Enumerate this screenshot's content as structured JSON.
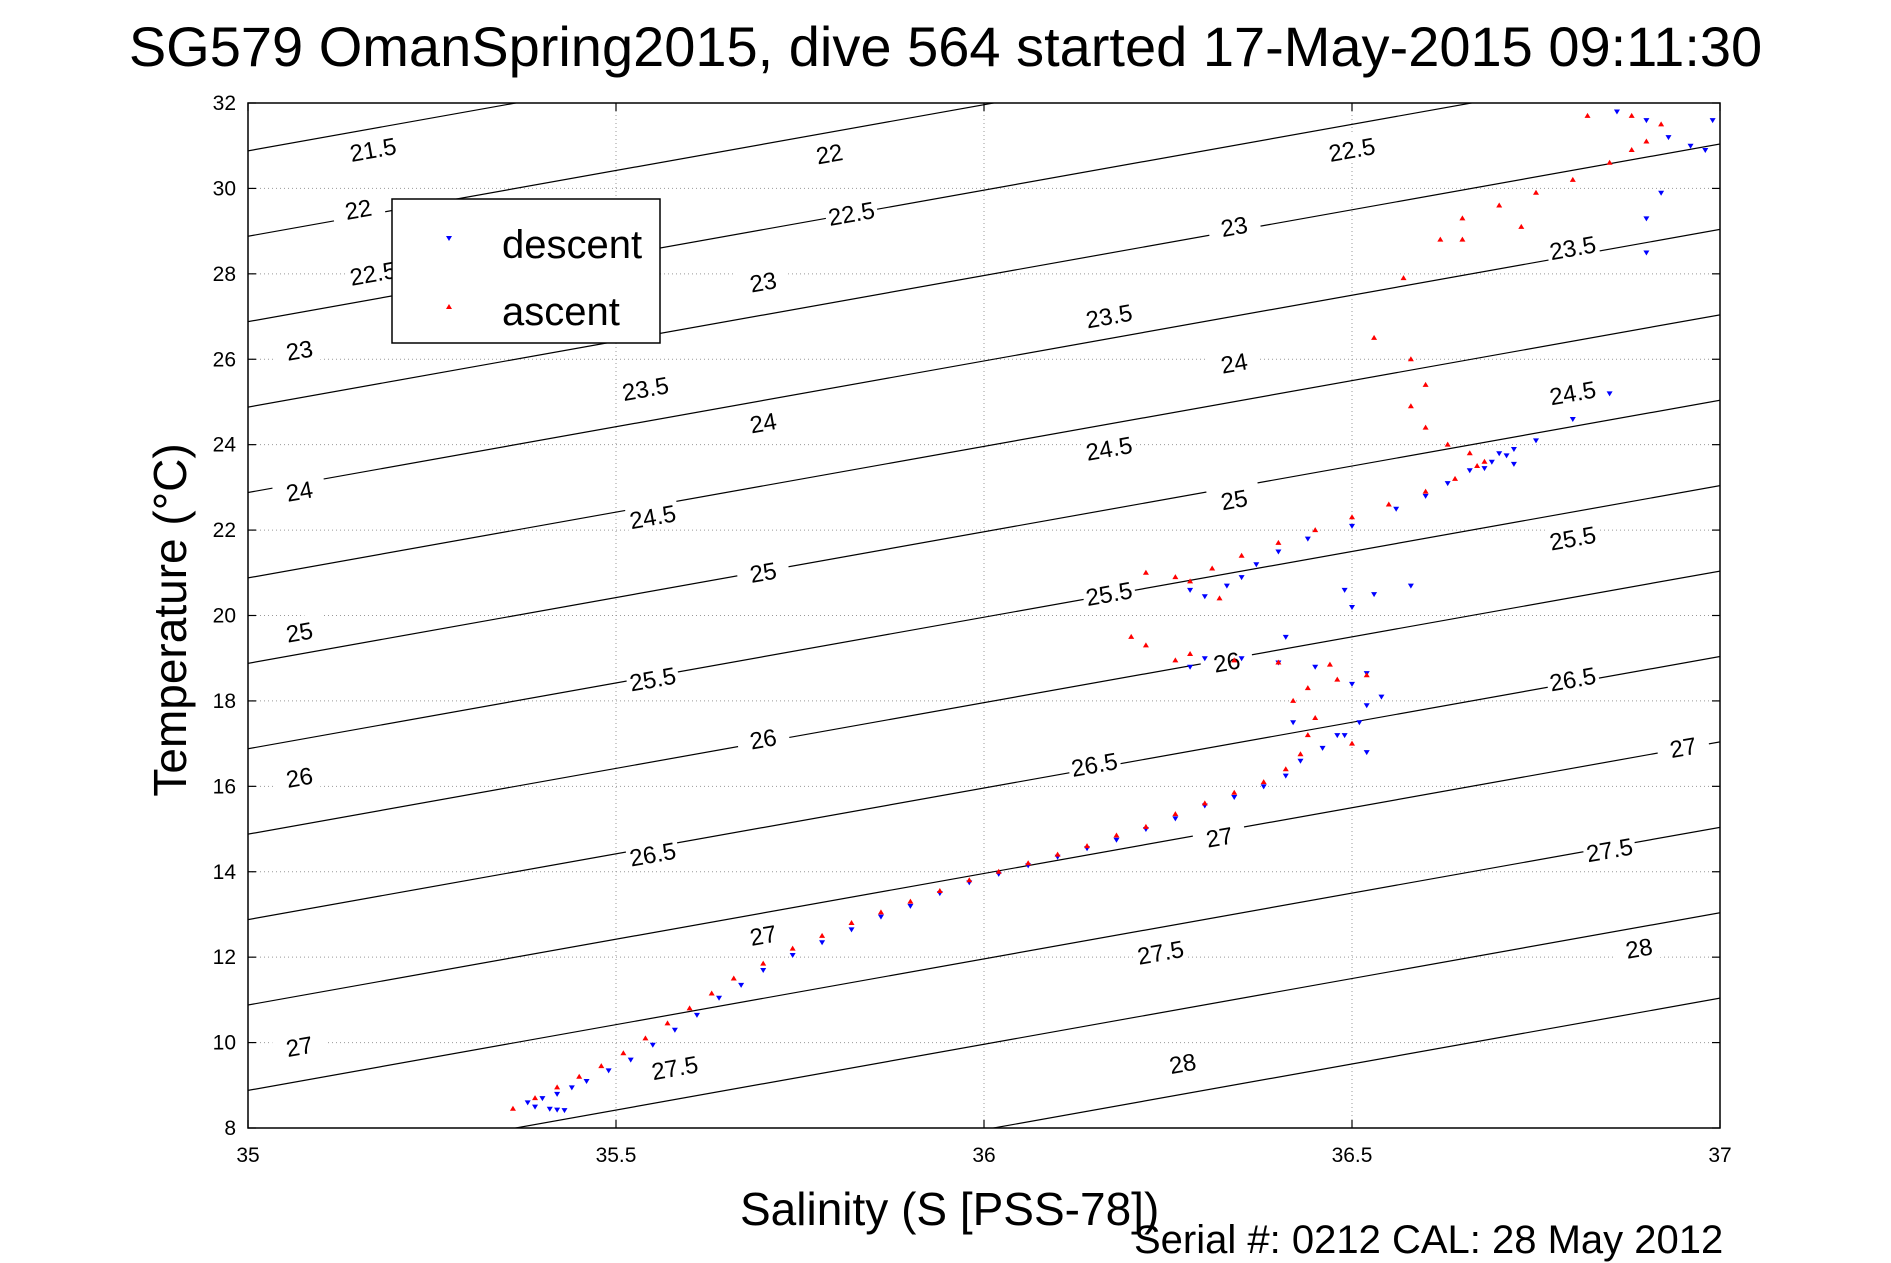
{
  "title": "SG579 OmanSpring2015, dive 564 started 17-May-2015 09:11:30",
  "footnote": "Serial #: 0212  CAL: 28 May 2012",
  "chart_data": {
    "type": "scatter",
    "title": "SG579 OmanSpring2015, dive 564 started 17-May-2015 09:11:30",
    "xlabel": "Salinity (S [PSS-78])",
    "ylabel": "Temperature (°C)",
    "xlim": [
      35,
      37
    ],
    "ylim": [
      8,
      32
    ],
    "xticks": [
      "35",
      "35.5",
      "36",
      "36.5",
      "37"
    ],
    "yticks": [
      "8",
      "10",
      "12",
      "14",
      "16",
      "18",
      "20",
      "22",
      "24",
      "26",
      "28",
      "30",
      "32"
    ],
    "grid": "dotted",
    "legend_position": "top-left",
    "density_contours": {
      "levels": [
        21.5,
        22,
        22.5,
        23,
        23.5,
        24,
        24.5,
        25,
        25.5,
        26,
        26.5,
        27,
        27.5,
        28
      ],
      "color": "#000000",
      "labels": [
        {
          "text": "21.5",
          "s": 35.17,
          "t": 30.9
        },
        {
          "text": "22",
          "s": 35.15,
          "t": 29.5
        },
        {
          "text": "22.5",
          "s": 35.17,
          "t": 28.0
        },
        {
          "text": "23",
          "s": 35.07,
          "t": 26.2
        },
        {
          "text": "24",
          "s": 35.07,
          "t": 22.9
        },
        {
          "text": "25",
          "s": 35.07,
          "t": 19.6
        },
        {
          "text": "26",
          "s": 35.07,
          "t": 16.2
        },
        {
          "text": "27",
          "s": 35.07,
          "t": 9.9
        },
        {
          "text": "22",
          "s": 35.79,
          "t": 30.8
        },
        {
          "text": "22.5",
          "s": 35.82,
          "t": 29.4
        },
        {
          "text": "23",
          "s": 35.7,
          "t": 27.8
        },
        {
          "text": "23.5",
          "s": 35.54,
          "t": 25.3
        },
        {
          "text": "24",
          "s": 35.7,
          "t": 24.5
        },
        {
          "text": "24.5",
          "s": 35.55,
          "t": 22.3
        },
        {
          "text": "25",
          "s": 35.7,
          "t": 21.0
        },
        {
          "text": "25.5",
          "s": 35.55,
          "t": 18.5
        },
        {
          "text": "26",
          "s": 35.7,
          "t": 17.1
        },
        {
          "text": "26.5",
          "s": 35.55,
          "t": 14.4
        },
        {
          "text": "27",
          "s": 35.7,
          "t": 12.5
        },
        {
          "text": "27.5",
          "s": 35.58,
          "t": 9.4
        },
        {
          "text": "22.5",
          "s": 36.5,
          "t": 30.9
        },
        {
          "text": "23",
          "s": 36.34,
          "t": 29.1
        },
        {
          "text": "23.5",
          "s": 36.17,
          "t": 27.0
        },
        {
          "text": "24",
          "s": 36.34,
          "t": 25.9
        },
        {
          "text": "24.5",
          "s": 36.17,
          "t": 23.9
        },
        {
          "text": "25",
          "s": 36.34,
          "t": 22.7
        },
        {
          "text": "25.5",
          "s": 36.17,
          "t": 20.5
        },
        {
          "text": "26",
          "s": 36.33,
          "t": 18.9
        },
        {
          "text": "26.5",
          "s": 36.15,
          "t": 16.5
        },
        {
          "text": "27",
          "s": 36.32,
          "t": 14.8
        },
        {
          "text": "27.5",
          "s": 36.24,
          "t": 12.1
        },
        {
          "text": "28",
          "s": 36.27,
          "t": 9.5
        },
        {
          "text": "23.5",
          "s": 36.8,
          "t": 28.6
        },
        {
          "text": "24.5",
          "s": 36.8,
          "t": 25.2
        },
        {
          "text": "25.5",
          "s": 36.8,
          "t": 21.8
        },
        {
          "text": "26.5",
          "s": 36.8,
          "t": 18.5
        },
        {
          "text": "27",
          "s": 36.95,
          "t": 16.9
        },
        {
          "text": "27.5",
          "s": 36.85,
          "t": 14.5
        },
        {
          "text": "28",
          "s": 36.89,
          "t": 12.2
        }
      ]
    },
    "series": [
      {
        "name": "descent",
        "color": "#0000ff",
        "marker": "down-triangle",
        "points": [
          [
            35.41,
            8.45
          ],
          [
            35.42,
            8.43
          ],
          [
            35.43,
            8.42
          ],
          [
            35.39,
            8.5
          ],
          [
            35.38,
            8.6
          ],
          [
            35.4,
            8.7
          ],
          [
            35.42,
            8.8
          ],
          [
            35.44,
            8.95
          ],
          [
            35.46,
            9.1
          ],
          [
            35.49,
            9.35
          ],
          [
            35.52,
            9.6
          ],
          [
            35.55,
            9.95
          ],
          [
            35.58,
            10.3
          ],
          [
            35.61,
            10.65
          ],
          [
            35.64,
            11.05
          ],
          [
            35.67,
            11.35
          ],
          [
            35.7,
            11.7
          ],
          [
            35.74,
            12.05
          ],
          [
            35.78,
            12.35
          ],
          [
            35.82,
            12.65
          ],
          [
            35.86,
            12.95
          ],
          [
            35.9,
            13.2
          ],
          [
            35.94,
            13.5
          ],
          [
            35.98,
            13.75
          ],
          [
            36.02,
            13.95
          ],
          [
            36.06,
            14.15
          ],
          [
            36.1,
            14.35
          ],
          [
            36.14,
            14.55
          ],
          [
            36.18,
            14.75
          ],
          [
            36.22,
            15.0
          ],
          [
            36.26,
            15.25
          ],
          [
            36.3,
            15.55
          ],
          [
            36.34,
            15.75
          ],
          [
            36.38,
            16.0
          ],
          [
            36.41,
            16.25
          ],
          [
            36.43,
            16.6
          ],
          [
            36.46,
            16.9
          ],
          [
            36.49,
            17.2
          ],
          [
            36.51,
            17.5
          ],
          [
            36.52,
            17.9
          ],
          [
            36.54,
            18.1
          ],
          [
            36.5,
            18.4
          ],
          [
            36.52,
            18.65
          ],
          [
            36.45,
            18.8
          ],
          [
            36.4,
            18.9
          ],
          [
            36.35,
            19.0
          ],
          [
            36.3,
            19.0
          ],
          [
            36.28,
            18.8
          ],
          [
            36.41,
            19.5
          ],
          [
            36.33,
            20.7
          ],
          [
            36.3,
            20.45
          ],
          [
            36.28,
            20.6
          ],
          [
            36.35,
            20.9
          ],
          [
            36.37,
            21.2
          ],
          [
            36.4,
            21.5
          ],
          [
            36.44,
            21.8
          ],
          [
            36.5,
            22.1
          ],
          [
            36.56,
            22.5
          ],
          [
            36.6,
            22.8
          ],
          [
            36.63,
            23.1
          ],
          [
            36.66,
            23.4
          ],
          [
            36.69,
            23.6
          ],
          [
            36.7,
            23.8
          ],
          [
            36.72,
            23.9
          ],
          [
            36.75,
            24.1
          ],
          [
            36.8,
            24.6
          ],
          [
            36.85,
            25.2
          ],
          [
            36.49,
            20.6
          ],
          [
            36.5,
            20.2
          ],
          [
            36.53,
            20.5
          ],
          [
            36.58,
            20.7
          ],
          [
            36.42,
            17.5
          ],
          [
            36.48,
            17.2
          ],
          [
            36.52,
            16.8
          ],
          [
            36.86,
            31.8
          ],
          [
            36.9,
            31.6
          ],
          [
            36.93,
            31.2
          ],
          [
            36.96,
            31.0
          ],
          [
            36.98,
            30.9
          ],
          [
            36.99,
            31.6
          ],
          [
            36.92,
            29.9
          ],
          [
            36.9,
            29.3
          ],
          [
            36.9,
            28.5
          ],
          [
            36.72,
            23.55
          ],
          [
            36.71,
            23.75
          ],
          [
            36.68,
            23.45
          ]
        ]
      },
      {
        "name": "ascent",
        "color": "#ff0000",
        "marker": "up-triangle",
        "points": [
          [
            35.36,
            8.45
          ],
          [
            35.39,
            8.7
          ],
          [
            35.42,
            8.95
          ],
          [
            35.45,
            9.2
          ],
          [
            35.48,
            9.45
          ],
          [
            35.51,
            9.75
          ],
          [
            35.54,
            10.1
          ],
          [
            35.57,
            10.45
          ],
          [
            35.6,
            10.8
          ],
          [
            35.63,
            11.15
          ],
          [
            35.66,
            11.5
          ],
          [
            35.7,
            11.85
          ],
          [
            35.74,
            12.2
          ],
          [
            35.78,
            12.5
          ],
          [
            35.82,
            12.8
          ],
          [
            35.86,
            13.05
          ],
          [
            35.9,
            13.3
          ],
          [
            35.94,
            13.55
          ],
          [
            35.98,
            13.8
          ],
          [
            36.02,
            14.0
          ],
          [
            36.06,
            14.2
          ],
          [
            36.1,
            14.4
          ],
          [
            36.14,
            14.6
          ],
          [
            36.18,
            14.85
          ],
          [
            36.22,
            15.05
          ],
          [
            36.26,
            15.35
          ],
          [
            36.3,
            15.6
          ],
          [
            36.34,
            15.85
          ],
          [
            36.38,
            16.1
          ],
          [
            36.41,
            16.4
          ],
          [
            36.43,
            16.75
          ],
          [
            36.44,
            17.2
          ],
          [
            36.45,
            17.6
          ],
          [
            36.42,
            18.0
          ],
          [
            36.44,
            18.3
          ],
          [
            36.48,
            18.5
          ],
          [
            36.52,
            18.6
          ],
          [
            36.5,
            17.0
          ],
          [
            36.47,
            18.85
          ],
          [
            36.4,
            18.9
          ],
          [
            36.34,
            18.95
          ],
          [
            36.26,
            18.95
          ],
          [
            36.22,
            19.3
          ],
          [
            36.2,
            19.5
          ],
          [
            36.28,
            19.1
          ],
          [
            36.32,
            20.4
          ],
          [
            36.28,
            20.8
          ],
          [
            36.31,
            21.1
          ],
          [
            36.35,
            21.4
          ],
          [
            36.4,
            21.7
          ],
          [
            36.45,
            22.0
          ],
          [
            36.5,
            22.3
          ],
          [
            36.55,
            22.6
          ],
          [
            36.6,
            22.9
          ],
          [
            36.64,
            23.2
          ],
          [
            36.67,
            23.5
          ],
          [
            36.68,
            23.6
          ],
          [
            36.66,
            23.8
          ],
          [
            36.63,
            24.0
          ],
          [
            36.6,
            24.4
          ],
          [
            36.58,
            24.9
          ],
          [
            36.6,
            25.4
          ],
          [
            36.58,
            26.0
          ],
          [
            36.53,
            26.5
          ],
          [
            36.57,
            27.9
          ],
          [
            36.62,
            28.8
          ],
          [
            36.65,
            29.3
          ],
          [
            36.7,
            29.6
          ],
          [
            36.75,
            29.9
          ],
          [
            36.8,
            30.2
          ],
          [
            36.85,
            30.6
          ],
          [
            36.88,
            30.9
          ],
          [
            36.9,
            31.1
          ],
          [
            36.92,
            31.5
          ],
          [
            36.88,
            31.7
          ],
          [
            36.82,
            31.7
          ],
          [
            36.73,
            29.1
          ],
          [
            36.65,
            28.8
          ],
          [
            36.22,
            21.0
          ],
          [
            36.26,
            20.9
          ]
        ]
      }
    ]
  }
}
